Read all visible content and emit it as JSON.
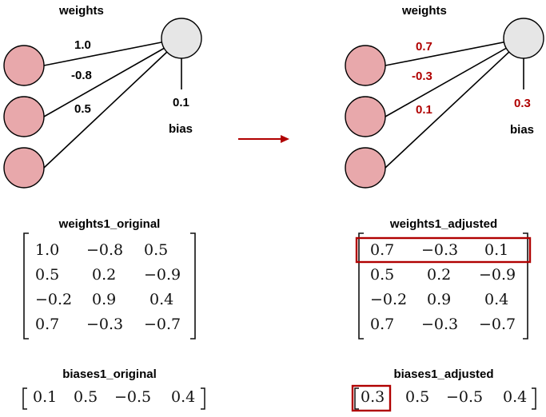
{
  "left_network": {
    "title": "weights",
    "weights": [
      "1.0",
      "-0.8",
      "0.5"
    ],
    "bias_value": "0.1",
    "bias_label": "bias"
  },
  "right_network": {
    "title": "weights",
    "weights": [
      "0.7",
      "-0.3",
      "0.1"
    ],
    "bias_value": "0.3",
    "bias_label": "bias"
  },
  "weights_original": {
    "title": "weights1_original",
    "rows": [
      [
        "1.0",
        "−0.8",
        "0.5"
      ],
      [
        "0.5",
        "0.2",
        "−0.9"
      ],
      [
        "−0.2",
        "0.9",
        "0.4"
      ],
      [
        "0.7",
        "−0.3",
        "−0.7"
      ]
    ]
  },
  "weights_adjusted": {
    "title": "weights1_adjusted",
    "rows": [
      [
        "0.7",
        "−0.3",
        "0.1"
      ],
      [
        "0.5",
        "0.2",
        "−0.9"
      ],
      [
        "−0.2",
        "0.9",
        "0.4"
      ],
      [
        "0.7",
        "−0.3",
        "−0.7"
      ]
    ]
  },
  "biases_original": {
    "title": "biases1_original",
    "values": [
      "0.1",
      "0.5",
      "−0.5",
      "0.4"
    ]
  },
  "biases_adjusted": {
    "title": "biases1_adjusted",
    "values": [
      "0.3",
      "0.5",
      "−0.5",
      "0.4"
    ]
  },
  "colors": {
    "input_node": "#e8a8ab",
    "output_node": "#e6e6e6",
    "highlight": "#b00000"
  }
}
